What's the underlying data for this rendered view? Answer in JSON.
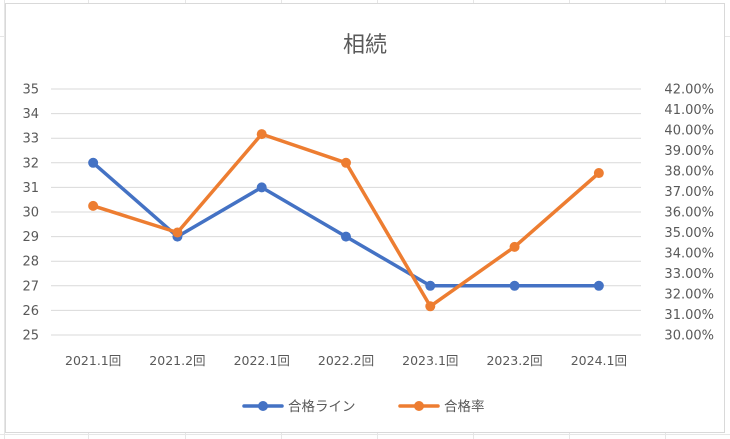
{
  "chart_data": {
    "type": "line",
    "title": "相続",
    "categories": [
      "2021.1回",
      "2021.2回",
      "2022.1回",
      "2022.2回",
      "2023.1回",
      "2023.2回",
      "2024.1回"
    ],
    "series": [
      {
        "name": "合格ライン",
        "axis": "left",
        "color": "#4472C4",
        "values": [
          32,
          29,
          31,
          29,
          27,
          27,
          27
        ]
      },
      {
        "name": "合格率",
        "axis": "right",
        "color": "#ED7D31",
        "values": [
          0.363,
          0.35,
          0.398,
          0.384,
          0.314,
          0.343,
          0.379
        ]
      }
    ],
    "y_left": {
      "min": 25,
      "max": 35,
      "step": 1,
      "ticks": [
        "25",
        "26",
        "27",
        "28",
        "29",
        "30",
        "31",
        "32",
        "33",
        "34",
        "35"
      ]
    },
    "y_right": {
      "min": 0.3,
      "max": 0.42,
      "step": 0.01,
      "ticks": [
        "30.00%",
        "31.00%",
        "32.00%",
        "33.00%",
        "34.00%",
        "35.00%",
        "36.00%",
        "37.00%",
        "38.00%",
        "39.00%",
        "40.00%",
        "41.00%",
        "42.00%"
      ]
    },
    "grid": true,
    "legend_position": "bottom"
  }
}
